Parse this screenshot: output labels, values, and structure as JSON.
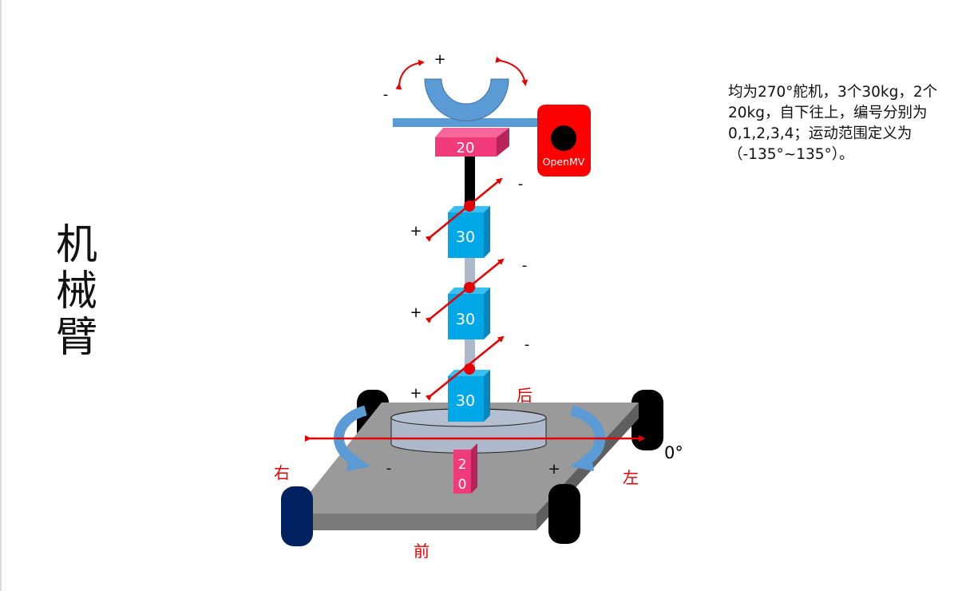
{
  "title_chars": [
    "机",
    "械",
    "臂"
  ],
  "description": "均为270°舵机，3个30kg，2个20kg，自下往上，编号分别为0,1,2,3,4；运动范围定义为（-135°~135°）。",
  "servo_labels": {
    "s20_top": "20",
    "s30_a": "30",
    "s30_b": "30",
    "s30_c": "30",
    "s20_base_1": "2",
    "s20_base_2": "0"
  },
  "camera_label": "OpenMV",
  "signs": {
    "plus": "+",
    "minus": "-"
  },
  "directions": {
    "back": "后",
    "front": "前",
    "left": "左",
    "right": "右"
  },
  "zero_angle": "0°",
  "colors": {
    "blue_servo": "#00a8e8",
    "pink_servo": "#f03a7a",
    "red": "#e60000",
    "gripper": "#5b9bd5",
    "platform": "#9a9a9a",
    "openmv": "#ff0000"
  }
}
